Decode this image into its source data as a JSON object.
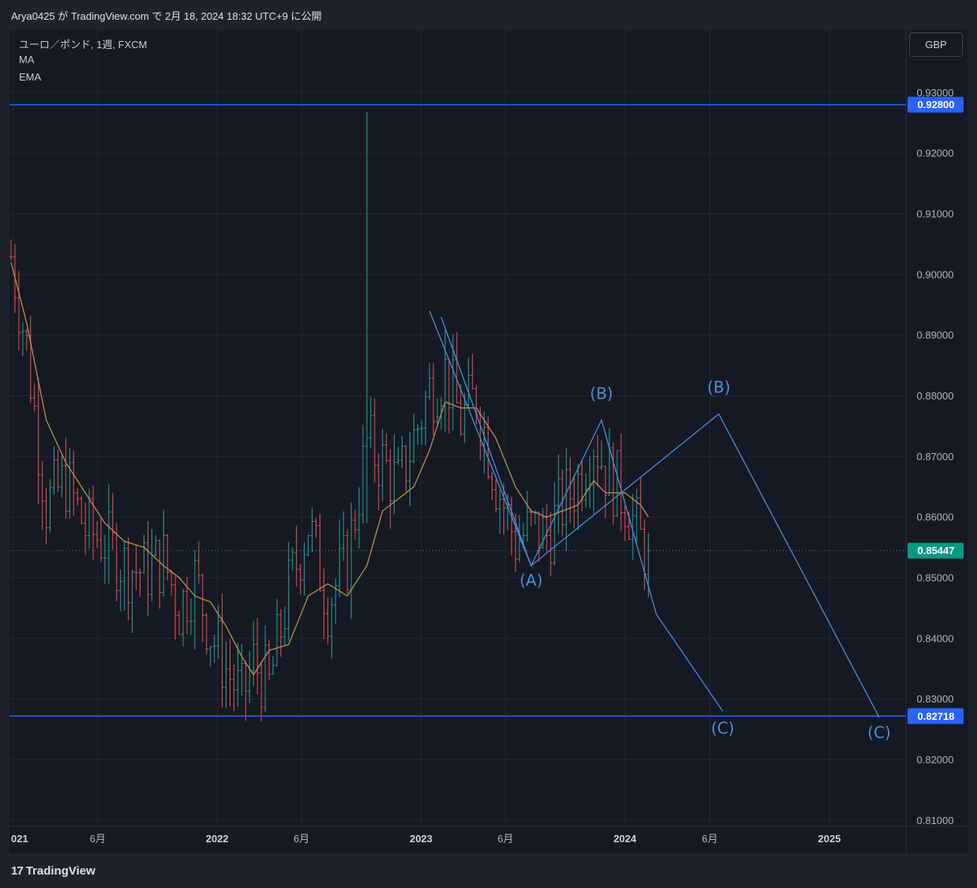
{
  "caption": "Arya0425 が TradingView.com で 2月 18, 2024 18:32 UTC+9 に公開",
  "legend": {
    "symbol": "ユーロ／ポンド, 1週, FXCM",
    "indicator_1": "MA",
    "indicator_2": "EMA"
  },
  "currency_button": "GBP",
  "logo": {
    "mark": "17",
    "text": "TradingView"
  },
  "colors": {
    "background": "#151924",
    "grid": "#232734",
    "up_bar": "#26a69a",
    "down_bar": "#ef5350",
    "ma_line": "#b8934d",
    "wave_lines": "#4a90d9",
    "horizontal_level": "#2962ff",
    "current_price": "#089981"
  },
  "chart_data": {
    "type": "ohlc",
    "interval": "1週",
    "y_axis": {
      "ticks": [
        "0.93000",
        "0.92000",
        "0.91000",
        "0.90000",
        "0.89000",
        "0.88000",
        "0.87000",
        "0.86000",
        "0.85000",
        "0.84000",
        "0.83000",
        "0.82000",
        "0.81000"
      ],
      "min": 0.81,
      "max": 0.93,
      "position": "right"
    },
    "x_axis": {
      "ticks": [
        {
          "label": "021",
          "date": "2021-01-01"
        },
        {
          "label": "6月",
          "date": "2021-06-01"
        },
        {
          "label": "2022",
          "date": "2022-01-01"
        },
        {
          "label": "6月",
          "date": "2022-06-01"
        },
        {
          "label": "2023",
          "date": "2023-01-01"
        },
        {
          "label": "6月",
          "date": "2023-06-01"
        },
        {
          "label": "2024",
          "date": "2024-01-01"
        },
        {
          "label": "6月",
          "date": "2024-06-01"
        },
        {
          "label": "2025",
          "date": "2025-01-01"
        }
      ],
      "start": "2020-12-28",
      "end": "2025-06-01"
    },
    "horizontal_levels": [
      {
        "label": "0.92800",
        "value": 0.928
      },
      {
        "label": "0.82718",
        "value": 0.82718
      }
    ],
    "current_price": {
      "label": "0.85447",
      "value": 0.85447
    },
    "price_path": [
      [
        "2020-12-28",
        0.903
      ],
      [
        "2021-01-25",
        0.888
      ],
      [
        "2021-03-01",
        0.862
      ],
      [
        "2021-04-05",
        0.866
      ],
      [
        "2021-05-10",
        0.858
      ],
      [
        "2021-06-14",
        0.856
      ],
      [
        "2021-07-19",
        0.852
      ],
      [
        "2021-08-23",
        0.851
      ],
      [
        "2021-09-27",
        0.853
      ],
      [
        "2021-10-25",
        0.845
      ],
      [
        "2021-11-22",
        0.85
      ],
      [
        "2021-12-20",
        0.841
      ],
      [
        "2022-01-17",
        0.835
      ],
      [
        "2022-02-14",
        0.83
      ],
      [
        "2022-03-07",
        0.836
      ],
      [
        "2022-04-04",
        0.832
      ],
      [
        "2022-05-09",
        0.848
      ],
      [
        "2022-06-13",
        0.859
      ],
      [
        "2022-07-18",
        0.846
      ],
      [
        "2022-08-22",
        0.853
      ],
      [
        "2022-09-26",
        0.872
      ],
      [
        "2022-10-24",
        0.869
      ],
      [
        "2022-11-21",
        0.865
      ],
      [
        "2022-12-19",
        0.873
      ],
      [
        "2023-01-16",
        0.881
      ],
      [
        "2023-02-13",
        0.884
      ],
      [
        "2023-03-13",
        0.876
      ],
      [
        "2023-04-10",
        0.88
      ],
      [
        "2023-05-15",
        0.866
      ],
      [
        "2023-06-19",
        0.856
      ],
      [
        "2023-07-17",
        0.858
      ],
      [
        "2023-08-14",
        0.857
      ],
      [
        "2023-09-11",
        0.862
      ],
      [
        "2023-10-09",
        0.866
      ],
      [
        "2023-11-06",
        0.873
      ],
      [
        "2023-11-27",
        0.868
      ],
      [
        "2024-01-01",
        0.863
      ],
      [
        "2024-01-29",
        0.856
      ],
      [
        "2024-02-12",
        0.854
      ]
    ],
    "spike": {
      "date": "2022-09-26",
      "high": 0.9268,
      "low": 0.859
    },
    "series": [
      {
        "name": "MA",
        "values": [
          [
            "2020-12-28",
            0.902
          ],
          [
            "2021-01-25",
            0.892
          ],
          [
            "2021-03-01",
            0.876
          ],
          [
            "2021-04-05",
            0.869
          ],
          [
            "2021-05-10",
            0.864
          ],
          [
            "2021-06-14",
            0.859
          ],
          [
            "2021-07-19",
            0.856
          ],
          [
            "2021-08-23",
            0.855
          ],
          [
            "2021-09-27",
            0.852
          ],
          [
            "2021-10-25",
            0.85
          ],
          [
            "2021-11-22",
            0.847
          ],
          [
            "2021-12-20",
            0.846
          ],
          [
            "2022-01-17",
            0.842
          ],
          [
            "2022-02-14",
            0.837
          ],
          [
            "2022-03-07",
            0.834
          ],
          [
            "2022-04-04",
            0.838
          ],
          [
            "2022-05-09",
            0.839
          ],
          [
            "2022-06-13",
            0.847
          ],
          [
            "2022-07-18",
            0.849
          ],
          [
            "2022-08-22",
            0.847
          ],
          [
            "2022-09-26",
            0.852
          ],
          [
            "2022-10-24",
            0.861
          ],
          [
            "2022-11-21",
            0.863
          ],
          [
            "2022-12-19",
            0.865
          ],
          [
            "2023-01-16",
            0.871
          ],
          [
            "2023-02-13",
            0.879
          ],
          [
            "2023-03-13",
            0.878
          ],
          [
            "2023-04-10",
            0.878
          ],
          [
            "2023-05-15",
            0.873
          ],
          [
            "2023-06-19",
            0.865
          ],
          [
            "2023-07-17",
            0.861
          ],
          [
            "2023-08-14",
            0.86
          ],
          [
            "2023-09-11",
            0.861
          ],
          [
            "2023-10-09",
            0.862
          ],
          [
            "2023-11-06",
            0.866
          ],
          [
            "2023-11-27",
            0.864
          ],
          [
            "2024-01-01",
            0.864
          ],
          [
            "2024-01-29",
            0.862
          ],
          [
            "2024-02-12",
            0.86
          ]
        ]
      }
    ],
    "wave_lines": [
      [
        [
          "2023-01-16",
          0.894
        ],
        [
          "2023-07-17",
          0.852
        ],
        [
          "2023-11-20",
          0.876
        ],
        [
          "2024-02-26",
          0.844
        ],
        [
          "2024-06-24",
          0.828
        ]
      ],
      [
        [
          "2023-02-06",
          0.893
        ],
        [
          "2023-07-17",
          0.852
        ],
        [
          "2024-06-17",
          0.877
        ],
        [
          "2025-03-31",
          0.827
        ]
      ]
    ],
    "annotations": [
      {
        "text": "(B)",
        "date": "2023-11-20",
        "value": 0.8795
      },
      {
        "text": "(B)",
        "date": "2024-06-17",
        "value": 0.8805
      },
      {
        "text": "(A)",
        "date": "2023-07-17",
        "value": 0.8487
      },
      {
        "text": "(C)",
        "date": "2024-06-24",
        "value": 0.8243
      },
      {
        "text": "(C)",
        "date": "2025-03-31",
        "value": 0.8236
      }
    ]
  }
}
